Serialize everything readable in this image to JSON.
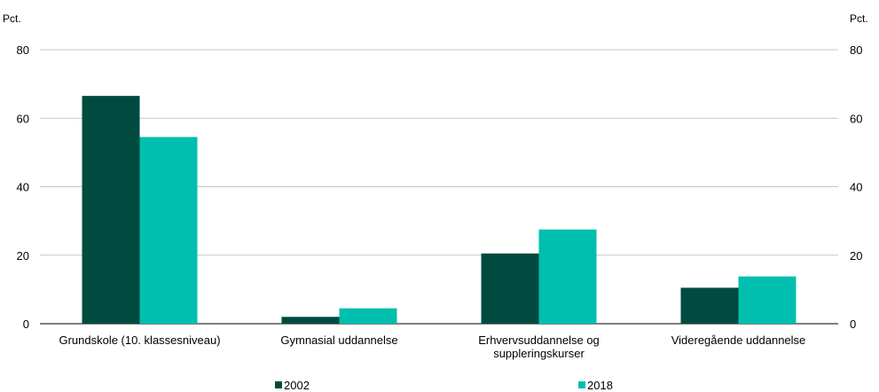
{
  "chart_data": {
    "type": "bar",
    "title": "",
    "categories": [
      [
        "Grundskole (10. klassesniveau)"
      ],
      [
        "Gymnasial uddannelse"
      ],
      [
        "Erhvervsuddannelse og",
        "suppleringskurser"
      ],
      [
        "Videregående uddannelse"
      ]
    ],
    "series": [
      {
        "name": "2002",
        "values": [
          66.5,
          2.0,
          20.5,
          10.5
        ],
        "color": "#004a3f"
      },
      {
        "name": "2018",
        "values": [
          54.5,
          4.5,
          27.5,
          13.8
        ],
        "color": "#00bfae"
      }
    ],
    "ylabel_left": "Pct.",
    "ylabel_right": "Pct.",
    "ylim": [
      0,
      80
    ],
    "yticks": [
      0,
      20,
      40,
      60,
      80
    ],
    "grid": true,
    "legend_position": "bottom"
  }
}
